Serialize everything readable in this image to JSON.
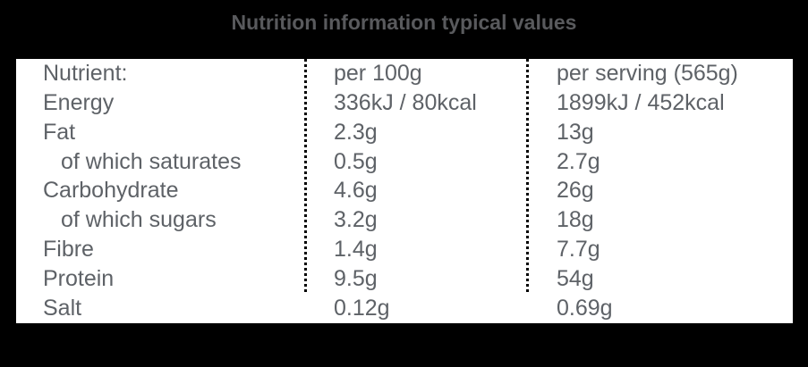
{
  "title": "Nutrition information typical values",
  "colors": {
    "background": "#000000",
    "panel": "#ffffff",
    "title_text": "#595a5d",
    "table_text": "#5e6267",
    "divider_dotted": "#000000"
  },
  "table": {
    "columns": {
      "nutrient": "Nutrient:",
      "per_100g": "per 100g",
      "per_serving": "per serving (565g)"
    },
    "rows": [
      {
        "nutrient": "Energy",
        "per_100g": "336kJ / 80kcal",
        "per_serving": "1899kJ / 452kcal"
      },
      {
        "nutrient": "Fat",
        "per_100g": "2.3g",
        "per_serving": "13g"
      },
      {
        "nutrient": "of which saturates",
        "per_100g": "0.5g",
        "per_serving": "2.7g"
      },
      {
        "nutrient": "Carbohydrate",
        "per_100g": "4.6g",
        "per_serving": "26g"
      },
      {
        "nutrient": "of which sugars",
        "per_100g": "3.2g",
        "per_serving": "18g"
      },
      {
        "nutrient": "Fibre",
        "per_100g": "1.4g",
        "per_serving": "7.7g"
      },
      {
        "nutrient": "Protein",
        "per_100g": "9.5g",
        "per_serving": "54g"
      },
      {
        "nutrient": "Salt",
        "per_100g": "0.12g",
        "per_serving": "0.69g"
      }
    ]
  }
}
